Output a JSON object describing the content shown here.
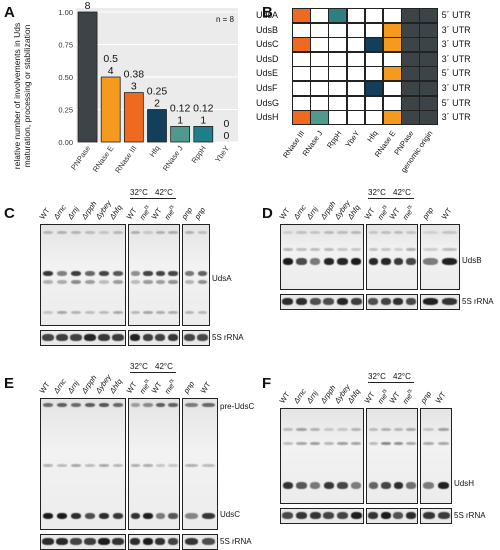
{
  "panel_a": {
    "letter": "A",
    "ylabel": "relative number of involvements in Uds maturation, processing or stabilization",
    "n_label": "n = 8",
    "ytick_labels": [
      "0.00",
      "0.25",
      "0.50",
      "0.75",
      "1.00"
    ],
    "chart_data": {
      "type": "bar",
      "categories": [
        "PNPase",
        "RNase E",
        "RNase III",
        "Hfq",
        "RNase J",
        "RppH",
        "YbeY"
      ],
      "values": [
        1.0,
        0.5,
        0.38,
        0.25,
        0.12,
        0.12,
        0
      ],
      "value_labels": [
        "1",
        "0.5",
        "0.38",
        "0.25",
        "0.12",
        "0.12",
        "0"
      ],
      "count_labels": [
        "8",
        "4",
        "3",
        "2",
        "1",
        "1",
        "0"
      ],
      "colors": [
        "#3d4448",
        "#f39a1f",
        "#ee6a1e",
        "#123f5c",
        "#4f9a8d",
        "#1c7f8a",
        "#555555"
      ],
      "ylim": [
        0,
        1.0
      ],
      "xlabel": "",
      "ylabel": "relative number of involvements in Uds maturation, processing or stabilization"
    }
  },
  "panel_b": {
    "letter": "B",
    "rows": [
      "UdsA",
      "UdsB",
      "UdsC",
      "UdsD",
      "UdsE",
      "UdsF",
      "UdsG",
      "UdsH"
    ],
    "utr": [
      "5´ UTR",
      "3´ UTR",
      "3´ UTR",
      "3´ UTR",
      "5´ UTR",
      "3´ UTR",
      "5´ UTR",
      "3´ UTR"
    ],
    "cols": [
      "RNase III",
      "RNase J",
      "RppH",
      "YbeY",
      "Hfq",
      "RNase E",
      "PNPase",
      "genomic origin"
    ],
    "colors": {
      "rnase3": "#ee6a1e",
      "rnasej": "#4f9a8d",
      "rpph": "#2f7f80",
      "hfq": "#123f5c",
      "rnasee": "#f39a1f",
      "pnpase": "#3d4448",
      "origin": "#3d4448",
      "empty": "#ffffff"
    },
    "matrix": [
      [
        "rnase3",
        "empty",
        "rpph",
        "empty",
        "empty",
        "empty",
        "pnpase"
      ],
      [
        "empty",
        "empty",
        "empty",
        "empty",
        "empty",
        "rnasee",
        "pnpase"
      ],
      [
        "rnase3",
        "empty",
        "empty",
        "empty",
        "hfq",
        "rnasee",
        "pnpase"
      ],
      [
        "empty",
        "empty",
        "empty",
        "empty",
        "empty",
        "empty",
        "pnpase"
      ],
      [
        "empty",
        "empty",
        "empty",
        "empty",
        "empty",
        "rnasee",
        "pnpase"
      ],
      [
        "empty",
        "empty",
        "empty",
        "empty",
        "hfq",
        "empty",
        "pnpase"
      ],
      [
        "empty",
        "empty",
        "empty",
        "empty",
        "empty",
        "empty",
        "pnpase"
      ],
      [
        "rnase3",
        "rnasej",
        "empty",
        "empty",
        "empty",
        "rnasee",
        "pnpase"
      ]
    ]
  },
  "blots": {
    "temp1": "32°C",
    "temp2": "42°C",
    "rrna": "5S rRNA",
    "C": {
      "letter": "C",
      "target": "UdsA",
      "lanes1": [
        "WT",
        "Δrnc",
        "Δrnj",
        "Δrpph",
        "Δybey",
        "Δhfq"
      ],
      "lanes2": [
        "WT",
        "me",
        "WT",
        "me"
      ],
      "lanes3": [
        "pnp",
        "pnp"
      ]
    },
    "D": {
      "letter": "D",
      "target": "UdsB",
      "lanes1": [
        "WT",
        "Δrnc",
        "Δrnj",
        "Δrpph",
        "Δybey",
        "Δhfq"
      ],
      "lanes2": [
        "WT",
        "me",
        "WT",
        "me"
      ],
      "lanes3": [
        "pnp",
        "WT"
      ]
    },
    "E": {
      "letter": "E",
      "target": "UdsC",
      "target2": "pre-UdsC",
      "lanes1": [
        "WT",
        "Δrnc",
        "Δrnj",
        "Δrpph",
        "Δybey",
        "Δhfq"
      ],
      "lanes2": [
        "WT",
        "me",
        "WT",
        "me"
      ],
      "lanes3": [
        "pnp",
        "WT"
      ]
    },
    "F": {
      "letter": "F",
      "target": "UdsH",
      "lanes1": [
        "WT",
        "Δrnc",
        "Δrnj",
        "Δrpph",
        "Δybey",
        "Δhfq"
      ],
      "lanes2": [
        "WT",
        "me",
        "WT",
        "me"
      ],
      "lanes3": [
        "pnp",
        "WT"
      ]
    },
    "ts_sup": "ts"
  }
}
